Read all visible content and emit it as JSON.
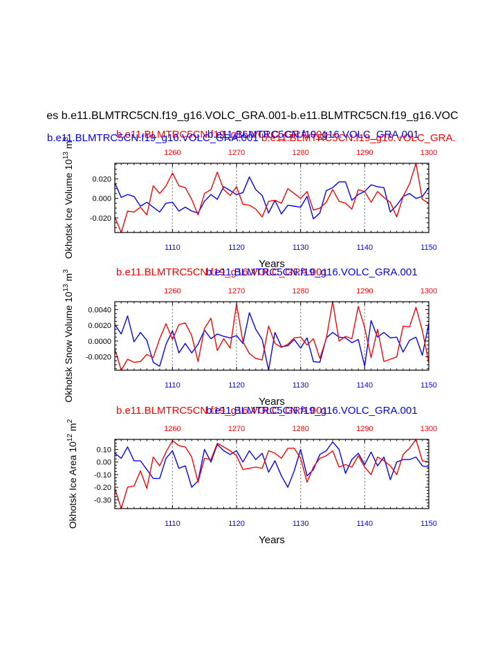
{
  "figure": {
    "title": "es b.e11.BLMTRC5CN.f19_g16.VOLC_GRA.001-b.e11.BLMTRC5CN.f19_g16.VOC"
  },
  "chart_data": [
    {
      "type": "line",
      "ylabel": "Okhotsk Ice Volume 10",
      "ylabel_exp": "13",
      "ylabel_unit": " m",
      "ylabel_unit_exp": "3",
      "xlabel": "Years",
      "top_title_red": "b.e11.BLMTRC5CN.f19_g16.VOLC_GRA.001",
      "top_title_blue": "b.e11.BLMTRC5CN.f19_g16.VOLC_GRA.001",
      "top_title_red2": "b.e11.BLMTRC5CN.f19_g16.VOLC_GRA.",
      "bottom_xlim": [
        1101,
        1150
      ],
      "top_xlim": [
        1251,
        1300
      ],
      "bottom_ticks": [
        "1110",
        "1120",
        "1130",
        "1140",
        "1150"
      ],
      "top_ticks": [
        "1260",
        "1270",
        "1280",
        "1290",
        "1300"
      ],
      "ylim": [
        -0.035,
        0.036
      ],
      "ytick_values": [
        -0.02,
        0.0,
        0.02
      ],
      "ytick_labels": [
        "-0.020",
        "0.000",
        "0.020"
      ],
      "series": [
        {
          "name": "blue",
          "color": "#0000ff",
          "x_start": 1101,
          "values": [
            0.016,
            0.001,
            0.004,
            0.002,
            -0.008,
            -0.004,
            -0.009,
            -0.014,
            -0.005,
            -0.004,
            -0.013,
            -0.009,
            -0.013,
            -0.015,
            -0.003,
            0.004,
            -0.001,
            0.012,
            0.008,
            0.004,
            0.006,
            0.022,
            0.009,
            0.003,
            -0.015,
            -0.002,
            -0.016,
            -0.007,
            -0.008,
            -0.009,
            0.002,
            -0.021,
            -0.015,
            0.008,
            0.011,
            0.017,
            0.017,
            -0.002,
            0.004,
            0.007,
            0.014,
            0.012,
            0.011,
            -0.014,
            -0.007,
            0.002,
            0.005,
            0.0,
            0.002,
            0.011
          ]
        },
        {
          "name": "red",
          "color": "#ff0000",
          "x_start": 1101,
          "values": [
            -0.019,
            -0.035,
            -0.013,
            -0.014,
            -0.009,
            -0.017,
            0.013,
            0.005,
            0.013,
            0.026,
            0.013,
            0.011,
            -0.001,
            -0.017,
            0.005,
            0.009,
            0.027,
            0.009,
            0.003,
            0.012,
            -0.006,
            -0.007,
            -0.011,
            -0.019,
            -0.003,
            -0.002,
            -0.005,
            0.01,
            0.005,
            0.0,
            0.007,
            -0.012,
            -0.01,
            -0.004,
            0.009,
            -0.003,
            -0.005,
            -0.011,
            0.009,
            0.007,
            -0.004,
            0.007,
            0.001,
            -0.004,
            -0.019,
            0.002,
            0.015,
            0.036,
            -0.001,
            -0.005
          ]
        }
      ]
    },
    {
      "type": "line",
      "ylabel": "Okhotsk Snow Volume 10",
      "ylabel_exp": "13",
      "ylabel_unit": " m",
      "ylabel_unit_exp": "3",
      "xlabel": "Years",
      "top_title_red": "b.e11.BLMTRC5CN.f19_g16.VOLC_GRA.001",
      "top_title_blue": "b.e11.BLMTRC5CN.f19_g16.VOLC_GRA.001",
      "top_title_red2": "",
      "bottom_xlim": [
        1101,
        1150
      ],
      "top_xlim": [
        1251,
        1300
      ],
      "bottom_ticks": [
        "1110",
        "1120",
        "1130",
        "1140",
        "1150"
      ],
      "top_ticks": [
        "1260",
        "1270",
        "1280",
        "1290",
        "1300"
      ],
      "ylim": [
        -0.0037,
        0.005
      ],
      "ytick_values": [
        -0.002,
        0.0,
        0.002,
        0.004
      ],
      "ytick_labels": [
        "-0.0020",
        "0.0000",
        "0.0020",
        "0.0040"
      ],
      "series": [
        {
          "name": "blue",
          "color": "#0000ff",
          "x_start": 1101,
          "values": [
            0.0021,
            0.0009,
            0.0032,
            -0.0001,
            0.0011,
            0.0001,
            -0.0027,
            -0.0032,
            -0.0004,
            0.0013,
            -0.0015,
            -0.0003,
            -0.0015,
            -0.0004,
            0.0014,
            0.0003,
            0.0009,
            0.0006,
            0.0004,
            0.0007,
            -0.0003,
            0.0036,
            0.0015,
            0.0002,
            -0.0037,
            0.0011,
            -0.0007,
            -0.0006,
            0.0002,
            -0.0009,
            0.0004,
            -0.0026,
            -0.0027,
            0.0004,
            0.0011,
            0.0005,
            0.0004,
            -0.0002,
            0.0002,
            -0.0032,
            0.0026,
            0.0005,
            0.0011,
            0.0004,
            0.0005,
            -0.0014,
            0.0001,
            0.0005,
            -0.0018,
            0.0022
          ]
        },
        {
          "name": "red",
          "color": "#ff0000",
          "x_start": 1101,
          "values": [
            -0.001,
            -0.0037,
            -0.0023,
            -0.0027,
            -0.0026,
            -0.0017,
            -0.0021,
            0.0003,
            0.0022,
            0.0002,
            0.0021,
            0.0023,
            0.0007,
            -0.0026,
            0.0016,
            0.0029,
            -0.0012,
            0.0003,
            -0.0009,
            0.0047,
            -0.0001,
            -0.0016,
            -0.0022,
            -0.0024,
            0.0019,
            -0.0003,
            -0.0008,
            -0.0004,
            0.0004,
            0.0005,
            -0.0005,
            0.0003,
            -0.0022,
            0.0003,
            0.005,
            0.0,
            0.0006,
            0.0003,
            0.0044,
            0.0017,
            -0.0021,
            0.0015,
            -0.0026,
            -0.0023,
            -0.002,
            0.0019,
            0.0018,
            0.0043,
            0.0013,
            -0.0027
          ]
        }
      ]
    },
    {
      "type": "line",
      "ylabel": "Okhotsk Ice Area 10",
      "ylabel_exp": "12",
      "ylabel_unit": " m",
      "ylabel_unit_exp": "2",
      "xlabel": "Years",
      "top_title_red": "b.e11.BLMTRC5CN.f19_g16.VOLC_GRA.001",
      "top_title_blue": "b.e11.BLMTRC5CN.f19_g16.VOLC_GRA.001",
      "top_title_red2": "",
      "bottom_xlim": [
        1101,
        1150
      ],
      "top_xlim": [
        1251,
        1300
      ],
      "bottom_ticks": [
        "1110",
        "1120",
        "1130",
        "1140",
        "1150"
      ],
      "top_ticks": [
        "1260",
        "1270",
        "1280",
        "1290",
        "1300"
      ],
      "ylim": [
        -0.37,
        0.18
      ],
      "ytick_values": [
        -0.3,
        -0.2,
        -0.1,
        0.0,
        0.1
      ],
      "ytick_labels": [
        "-0.30",
        "-0.20",
        "-0.10",
        "0.00",
        "0.10"
      ],
      "series": [
        {
          "name": "blue",
          "color": "#0000ff",
          "x_start": 1101,
          "values": [
            0.07,
            0.03,
            0.12,
            0.01,
            0.01,
            -0.06,
            -0.13,
            -0.13,
            0.03,
            0.09,
            -0.05,
            -0.03,
            -0.2,
            -0.15,
            0.1,
            0.0,
            0.14,
            0.09,
            0.06,
            0.09,
            0.0,
            0.09,
            0.02,
            0.07,
            -0.08,
            0.01,
            -0.11,
            -0.2,
            -0.07,
            0.1,
            -0.11,
            -0.06,
            0.06,
            0.09,
            0.16,
            0.1,
            -0.09,
            0.02,
            0.07,
            -0.02,
            0.08,
            -0.03,
            0.04,
            -0.14,
            0.0,
            0.02,
            0.02,
            0.04,
            -0.03,
            -0.04
          ]
        },
        {
          "name": "red",
          "color": "#ff0000",
          "x_start": 1101,
          "values": [
            -0.21,
            -0.37,
            -0.2,
            -0.19,
            -0.07,
            -0.21,
            0.04,
            -0.03,
            0.08,
            0.17,
            0.13,
            0.12,
            0.04,
            -0.16,
            0.03,
            0.02,
            0.15,
            0.12,
            0.09,
            0.05,
            -0.06,
            -0.05,
            -0.04,
            -0.05,
            0.09,
            0.07,
            0.03,
            0.11,
            0.11,
            0.03,
            -0.16,
            -0.04,
            0.03,
            0.05,
            0.09,
            -0.04,
            -0.02,
            -0.04,
            0.05,
            -0.04,
            -0.1,
            0.04,
            0.01,
            -0.03,
            -0.1,
            0.06,
            0.11,
            0.18,
            0.01,
            0.0
          ]
        }
      ]
    }
  ]
}
